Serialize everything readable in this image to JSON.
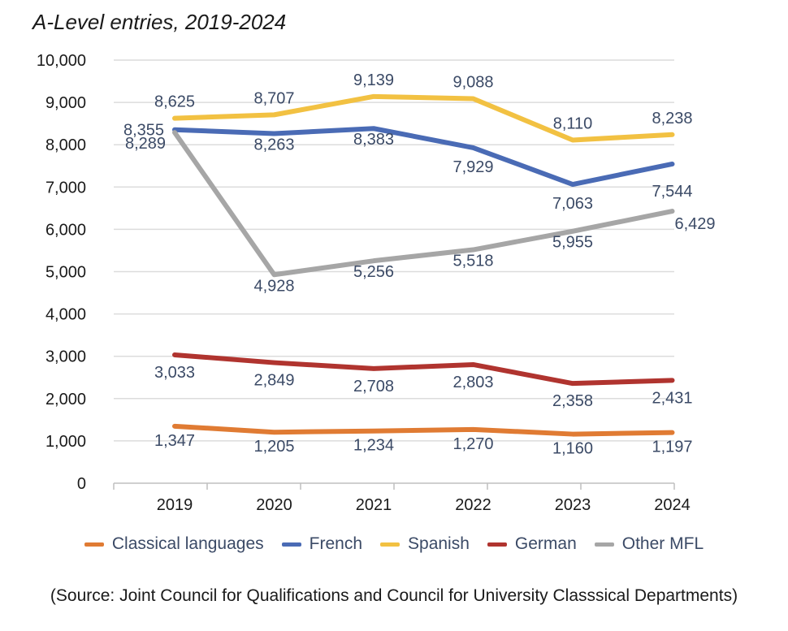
{
  "chart_data": {
    "type": "line",
    "title": "A-Level entries, 2019-2024",
    "xlabel": "",
    "ylabel": "",
    "categories": [
      "2019",
      "2020",
      "2021",
      "2022",
      "2023",
      "2024"
    ],
    "ylim": [
      0,
      10000
    ],
    "yticks": [
      0,
      1000,
      2000,
      3000,
      4000,
      5000,
      6000,
      7000,
      8000,
      9000,
      10000
    ],
    "ytick_labels": [
      "0",
      "1,000",
      "2,000",
      "3,000",
      "4,000",
      "5,000",
      "6,000",
      "7,000",
      "8,000",
      "9,000",
      "10,000"
    ],
    "grid": true,
    "legend_position": "bottom",
    "series": [
      {
        "name": "Classical languages",
        "color": "#e07b33",
        "values": [
          1347,
          1205,
          1234,
          1270,
          1160,
          1197
        ],
        "labels": [
          "1,347",
          "1,205",
          "1,234",
          "1,270",
          "1,160",
          "1,197"
        ]
      },
      {
        "name": "French",
        "color": "#4a6bb5",
        "values": [
          8355,
          8263,
          8383,
          7929,
          7063,
          7544
        ],
        "labels": [
          "8,355",
          "8,263",
          "8,383",
          "7,929",
          "7,063",
          "7,544"
        ]
      },
      {
        "name": "Spanish",
        "color": "#f2c142",
        "values": [
          8625,
          8707,
          9139,
          9088,
          8110,
          8238
        ],
        "labels": [
          "8,625",
          "8,707",
          "9,139",
          "9,088",
          "8,110",
          "8,238"
        ]
      },
      {
        "name": "German",
        "color": "#b0342f",
        "values": [
          3033,
          2849,
          2708,
          2803,
          2358,
          2431
        ],
        "labels": [
          "3,033",
          "2,849",
          "2,708",
          "2,803",
          "2,358",
          "2,431"
        ]
      },
      {
        "name": "Other MFL",
        "color": "#a6a6a6",
        "values": [
          8289,
          4928,
          5256,
          5518,
          5955,
          6429
        ],
        "labels": [
          "8,289",
          "4,928",
          "5,256",
          "5,518",
          "5,955",
          "6,429"
        ]
      }
    ]
  },
  "source_note": "(Source: Joint Council for Qualifications and Council for University Classsical Departments)"
}
